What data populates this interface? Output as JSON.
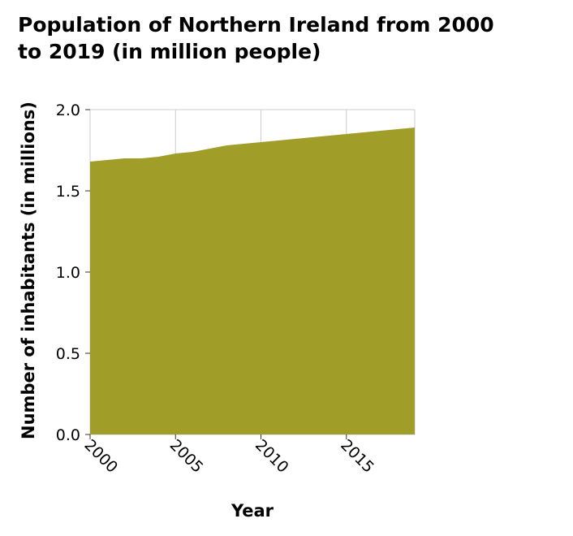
{
  "chart_data": {
    "type": "area",
    "title": "Population of Northern Ireland from 2000\nto 2019 (in million people)",
    "xlabel": "Year",
    "ylabel": "Number of inhabitants (in millions)",
    "x": [
      2000,
      2001,
      2002,
      2003,
      2004,
      2005,
      2006,
      2007,
      2008,
      2009,
      2010,
      2011,
      2012,
      2013,
      2014,
      2015,
      2016,
      2017,
      2018,
      2019
    ],
    "series": [
      {
        "values": [
          1.68,
          1.69,
          1.7,
          1.7,
          1.71,
          1.73,
          1.74,
          1.76,
          1.78,
          1.79,
          1.8,
          1.81,
          1.82,
          1.83,
          1.84,
          1.85,
          1.86,
          1.87,
          1.88,
          1.89
        ],
        "color": "#a09e29"
      }
    ],
    "xlim": [
      2000,
      2019
    ],
    "ylim": [
      0,
      2
    ],
    "xticks": [
      "2000",
      "2005",
      "2010",
      "2015"
    ],
    "yticks": [
      "0.0",
      "0.5",
      "1.0",
      "1.5",
      "2.0"
    ],
    "grid": true,
    "grid_color": "#cccccc",
    "tick_label_rotation": "45 degrees"
  }
}
